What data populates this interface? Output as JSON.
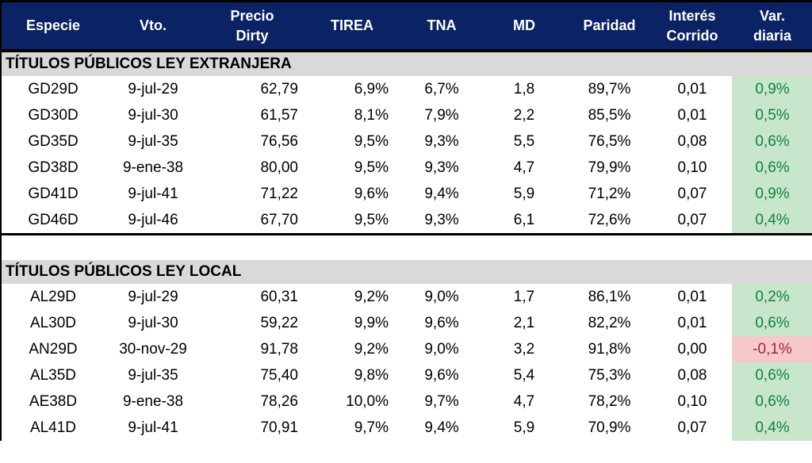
{
  "colors": {
    "header_bg": "#0B2265",
    "header_text": "#FFFFFF",
    "section_bg": "#D9D9D9",
    "positive_bg": "#C7E6CB",
    "positive_text": "#15803D",
    "negative_bg": "#F6C8CC",
    "negative_text": "#A5242E",
    "border": "#000000"
  },
  "table": {
    "columns": [
      {
        "key": "especie",
        "label": "Especie"
      },
      {
        "key": "vto",
        "label": "Vto."
      },
      {
        "key": "precio_dirty",
        "label": "Precio\nDirty"
      },
      {
        "key": "tirea",
        "label": "TIREA"
      },
      {
        "key": "tna",
        "label": "TNA"
      },
      {
        "key": "md",
        "label": "MD"
      },
      {
        "key": "paridad",
        "label": "Paridad"
      },
      {
        "key": "interes_corrido",
        "label": "Interés\nCorrido"
      },
      {
        "key": "var_diaria",
        "label": "Var.\ndiaria"
      }
    ],
    "sections": [
      {
        "title": "TÍTULOS PÚBLICOS LEY EXTRANJERA",
        "divider_after": true,
        "gap_after": true,
        "rows": [
          {
            "cells": [
              "GD29D",
              "9-jul-29",
              "62,79",
              "6,9%",
              "6,7%",
              "1,8",
              "89,7%",
              "0,01",
              "0,9%"
            ],
            "var_trend": "positive"
          },
          {
            "cells": [
              "GD30D",
              "9-jul-30",
              "61,57",
              "8,1%",
              "7,9%",
              "2,2",
              "85,5%",
              "0,01",
              "0,5%"
            ],
            "var_trend": "positive"
          },
          {
            "cells": [
              "GD35D",
              "9-jul-35",
              "76,56",
              "9,5%",
              "9,3%",
              "5,5",
              "76,5%",
              "0,08",
              "0,6%"
            ],
            "var_trend": "positive"
          },
          {
            "cells": [
              "GD38D",
              "9-ene-38",
              "80,00",
              "9,5%",
              "9,3%",
              "4,7",
              "79,9%",
              "0,10",
              "0,6%"
            ],
            "var_trend": "positive"
          },
          {
            "cells": [
              "GD41D",
              "9-jul-41",
              "71,22",
              "9,6%",
              "9,4%",
              "5,9",
              "71,2%",
              "0,07",
              "0,9%"
            ],
            "var_trend": "positive"
          },
          {
            "cells": [
              "GD46D",
              "9-jul-46",
              "67,70",
              "9,5%",
              "9,3%",
              "6,1",
              "72,6%",
              "0,07",
              "0,4%"
            ],
            "var_trend": "positive"
          }
        ]
      },
      {
        "title": "TÍTULOS PÚBLICOS LEY LOCAL",
        "divider_after": false,
        "gap_after": false,
        "rows": [
          {
            "cells": [
              "AL29D",
              "9-jul-29",
              "60,31",
              "9,2%",
              "9,0%",
              "1,7",
              "86,1%",
              "0,01",
              "0,2%"
            ],
            "var_trend": "positive"
          },
          {
            "cells": [
              "AL30D",
              "9-jul-30",
              "59,22",
              "9,9%",
              "9,6%",
              "2,1",
              "82,2%",
              "0,01",
              "0,6%"
            ],
            "var_trend": "positive"
          },
          {
            "cells": [
              "AN29D",
              "30-nov-29",
              "91,78",
              "9,2%",
              "9,0%",
              "3,2",
              "91,8%",
              "0,00",
              "-0,1%"
            ],
            "var_trend": "negative"
          },
          {
            "cells": [
              "AL35D",
              "9-jul-35",
              "75,40",
              "9,8%",
              "9,6%",
              "5,4",
              "75,3%",
              "0,08",
              "0,6%"
            ],
            "var_trend": "positive"
          },
          {
            "cells": [
              "AE38D",
              "9-ene-38",
              "78,26",
              "10,0%",
              "9,7%",
              "4,7",
              "78,2%",
              "0,10",
              "0,6%"
            ],
            "var_trend": "positive"
          },
          {
            "cells": [
              "AL41D",
              "9-jul-41",
              "70,91",
              "9,7%",
              "9,4%",
              "5,9",
              "70,9%",
              "0,07",
              "0,4%"
            ],
            "var_trend": "positive"
          }
        ]
      }
    ]
  }
}
